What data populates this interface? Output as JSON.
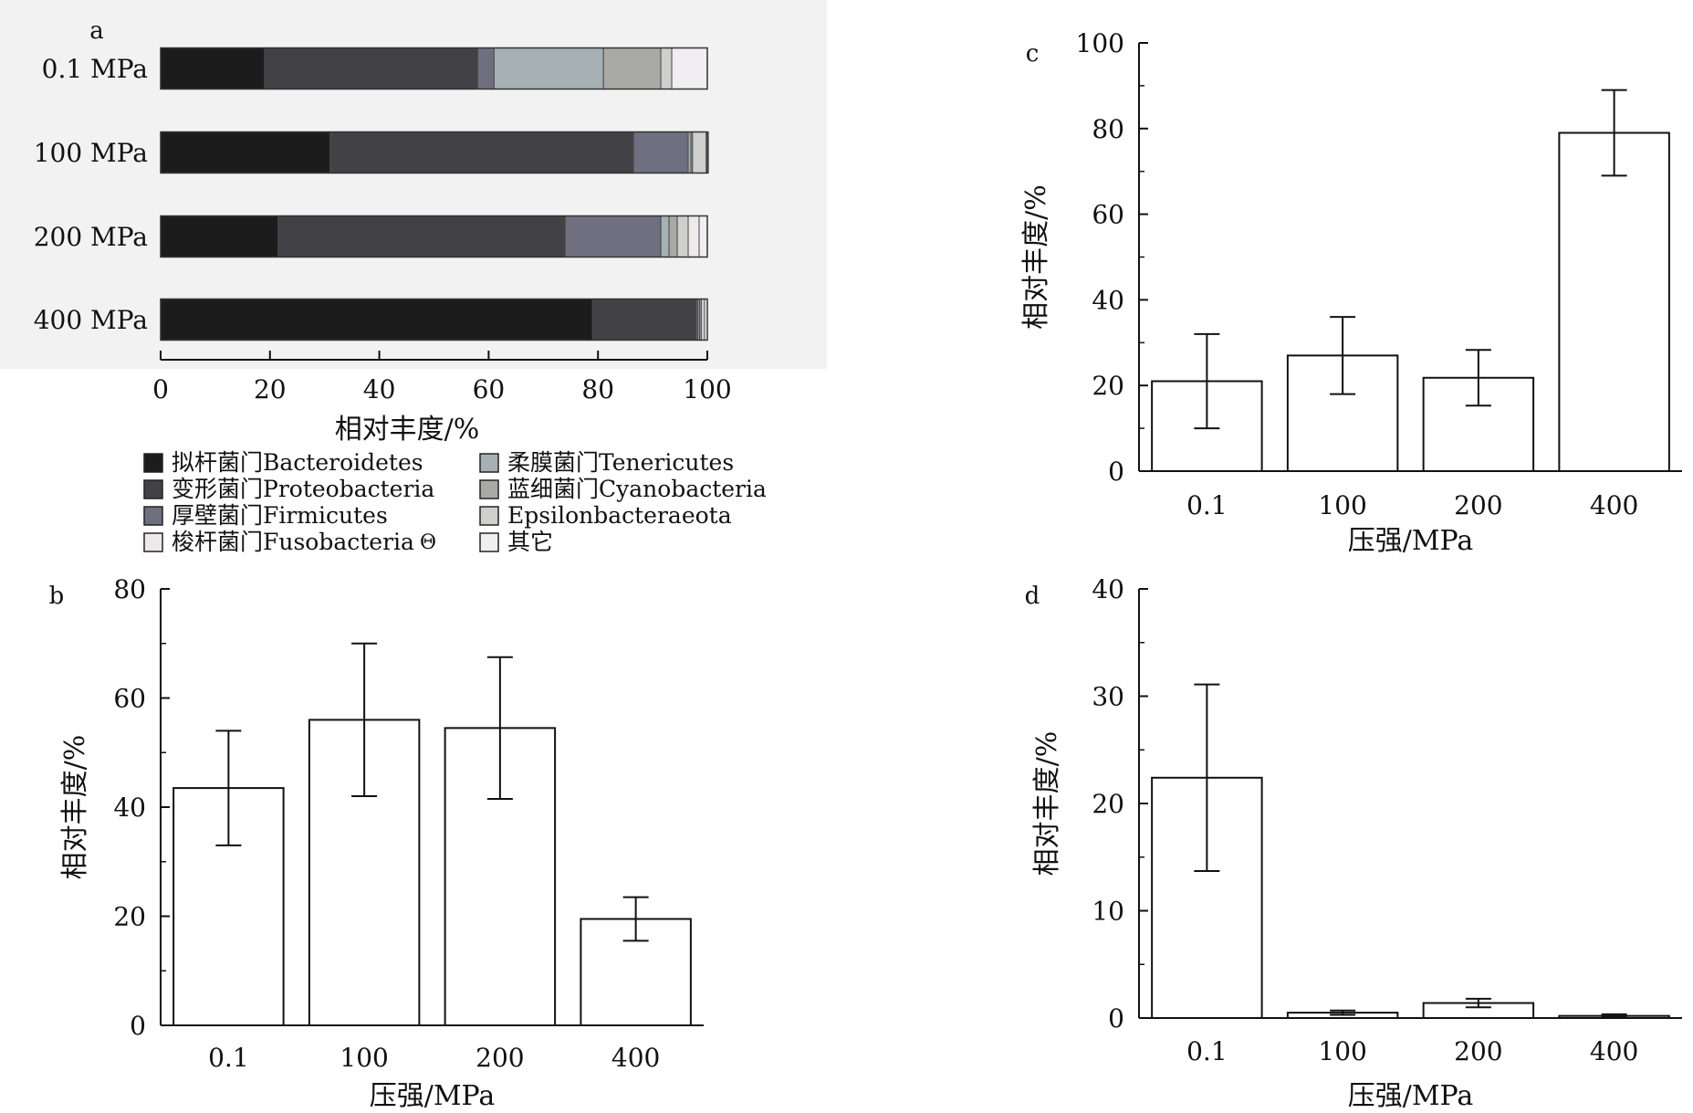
{
  "figure": {
    "panel_letters": [
      "a",
      "b",
      "c",
      "d"
    ]
  },
  "chart_data": [
    {
      "panel": "a",
      "type": "bar",
      "orientation": "horizontal",
      "stacked": true,
      "categories": [
        "0.1 MPa",
        "100 MPa",
        "200 MPa",
        "400 MPa"
      ],
      "xlabel": "相对丰度/%",
      "xlim": [
        0,
        100
      ],
      "xticks": [
        0,
        20,
        40,
        60,
        80,
        100
      ],
      "series": [
        {
          "name": "拟杆菌门Bacteroidetes",
          "color": "#1c1c1c",
          "values": [
            19,
            31,
            21.5,
            79
          ]
        },
        {
          "name": "变形菌门Proteobacteria",
          "color": "#414146",
          "values": [
            39,
            55.5,
            52.5,
            19
          ]
        },
        {
          "name": "厚壁菌门Firmicutes",
          "color": "#6f6f80",
          "values": [
            3,
            10,
            17.5,
            0.3
          ]
        },
        {
          "name": "柔膜菌门Tenericutes",
          "color": "#a7b1b3",
          "values": [
            20,
            0.5,
            1.5,
            0.3
          ]
        },
        {
          "name": "蓝细菌门Cyanobacteria",
          "color": "#a9aaa6",
          "values": [
            10.5,
            0.3,
            1.5,
            0.3
          ]
        },
        {
          "name": "Epsilonbacteraeota",
          "color": "#cfd0cd",
          "values": [
            2,
            2.5,
            2,
            0.6
          ]
        },
        {
          "name": "梭杆菌门Fusobacteria",
          "color": "#efeaea",
          "values": [
            0,
            0,
            2,
            0
          ]
        },
        {
          "name": "其它",
          "color": "#f1eef2",
          "values": [
            6.5,
            0.4,
            1.5,
            0.5
          ]
        }
      ],
      "legend_mark": "Θ",
      "legend_placement": "bottom",
      "background": "#f2f2f2"
    },
    {
      "panel": "b",
      "type": "bar",
      "categories": [
        "0.1",
        "100",
        "200",
        "400"
      ],
      "values": [
        43.5,
        56,
        54.5,
        19.5
      ],
      "error": [
        10.5,
        14,
        13,
        4
      ],
      "xlabel": "压强/MPa",
      "ylabel": "相对丰度/%",
      "ylim": [
        0,
        80
      ],
      "yticks": [
        0,
        20,
        40,
        60,
        80
      ]
    },
    {
      "panel": "c",
      "type": "bar",
      "categories": [
        "0.1",
        "100",
        "200",
        "400"
      ],
      "values": [
        21,
        27,
        21.8,
        79
      ],
      "error": [
        11,
        9,
        6.5,
        10
      ],
      "xlabel": "压强/MPa",
      "ylabel": "相对丰度/%",
      "ylim": [
        0,
        100
      ],
      "yticks": [
        0,
        20,
        40,
        60,
        80,
        100
      ]
    },
    {
      "panel": "d",
      "type": "bar",
      "categories": [
        "0.1",
        "100",
        "200",
        "400"
      ],
      "values": [
        22.4,
        0.5,
        1.4,
        0.2
      ],
      "error": [
        8.7,
        0.2,
        0.4,
        0.15
      ],
      "xlabel": "压强/MPa",
      "ylabel": "相对丰度/%",
      "ylim": [
        0,
        40
      ],
      "yticks": [
        0,
        10,
        20,
        30,
        40
      ]
    }
  ]
}
